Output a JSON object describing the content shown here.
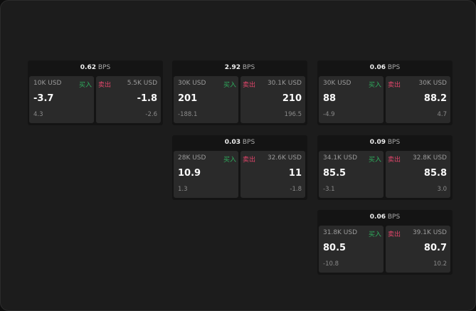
{
  "colors": {
    "buy": "#2fae5e",
    "sell": "#e0456a"
  },
  "labels": {
    "buy": "买入",
    "sell": "卖出",
    "unit": "BPS"
  },
  "panels": [
    {
      "spread": "0.62",
      "buy": {
        "qty": "10K USD",
        "price": "-3.7",
        "change": "4.3"
      },
      "sell": {
        "qty": "5.5K USD",
        "price": "-1.8",
        "change": "-2.6"
      }
    },
    {
      "spread": "2.92",
      "buy": {
        "qty": "30K USD",
        "price": "201",
        "change": "-188.1"
      },
      "sell": {
        "qty": "30.1K USD",
        "price": "210",
        "change": "196.5"
      }
    },
    {
      "spread": "0.06",
      "buy": {
        "qty": "30K USD",
        "price": "88",
        "change": "-4.9"
      },
      "sell": {
        "qty": "30K USD",
        "price": "88.2",
        "change": "4.7"
      }
    },
    {
      "spread": "0.03",
      "buy": {
        "qty": "28K USD",
        "price": "10.9",
        "change": "1.3"
      },
      "sell": {
        "qty": "32.6K USD",
        "price": "11",
        "change": "-1.8"
      }
    },
    {
      "spread": "0.09",
      "buy": {
        "qty": "34.1K USD",
        "price": "85.5",
        "change": "-3.1"
      },
      "sell": {
        "qty": "32.8K USD",
        "price": "85.8",
        "change": "3.0"
      }
    },
    {
      "spread": "0.06",
      "buy": {
        "qty": "31.8K USD",
        "price": "80.5",
        "change": "-10.8"
      },
      "sell": {
        "qty": "39.1K USD",
        "price": "80.7",
        "change": "10.2"
      }
    }
  ]
}
